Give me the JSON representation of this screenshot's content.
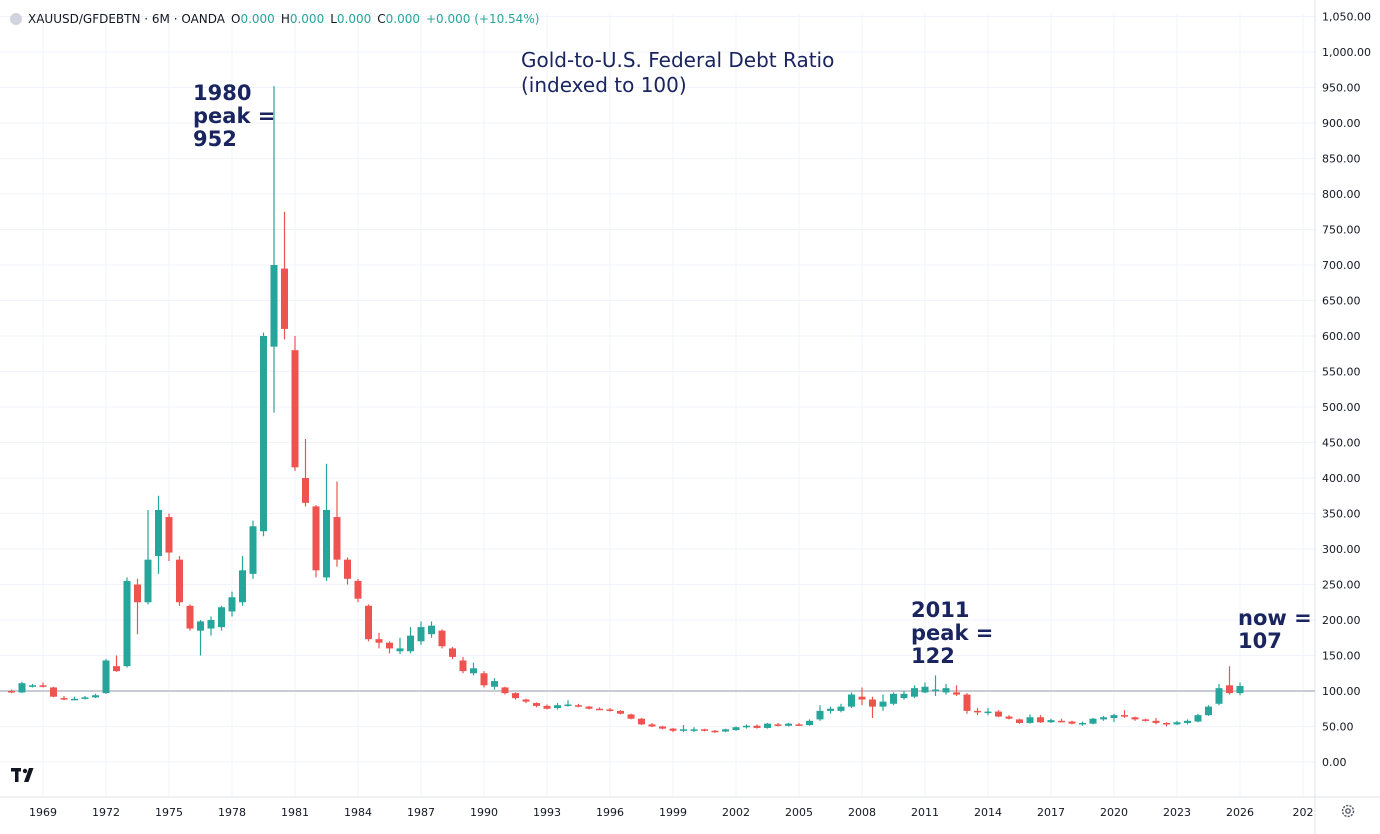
{
  "header": {
    "symbol": "XAUUSD/GFDEBTN · 6M · OANDA",
    "o_label": "O",
    "o_value": "0.000",
    "h_label": "H",
    "h_value": "0.000",
    "l_label": "L",
    "l_value": "0.000",
    "c_label": "C",
    "c_value": "0.000",
    "change": "+0.000 (+10.54%)"
  },
  "chart_data": {
    "type": "candlestick",
    "title": "Gold-to-U.S. Federal Debt Ratio",
    "subtitle": "(indexed to 100)",
    "xlim": [
      1967.4,
      2029.2
    ],
    "ylim": [
      0,
      1050
    ],
    "y_ticks": [
      "0.00",
      "50.00",
      "100.00",
      "150.00",
      "200.00",
      "250.00",
      "300.00",
      "350.00",
      "400.00",
      "450.00",
      "500.00",
      "550.00",
      "600.00",
      "650.00",
      "700.00",
      "750.00",
      "800.00",
      "850.00",
      "900.00",
      "950.00",
      "1,000.00",
      "1,050.00"
    ],
    "x_ticks": [
      "1969",
      "1972",
      "1975",
      "1978",
      "1981",
      "1984",
      "1987",
      "1990",
      "1993",
      "1996",
      "1999",
      "2002",
      "2005",
      "2008",
      "2011",
      "2014",
      "2017",
      "2020",
      "2023",
      "2026",
      "202"
    ],
    "x_tick_positions": [
      1969,
      1972,
      1975,
      1978,
      1981,
      1984,
      1987,
      1990,
      1993,
      1996,
      1999,
      2002,
      2005,
      2008,
      2011,
      2014,
      2017,
      2020,
      2023,
      2026,
      2029
    ],
    "reference_line": 100,
    "candles": [
      {
        "t": 1967.5,
        "o": 100,
        "h": 102,
        "l": 97,
        "c": 98
      },
      {
        "t": 1968.0,
        "o": 98,
        "h": 113,
        "l": 97,
        "c": 111
      },
      {
        "t": 1968.5,
        "o": 108,
        "h": 110,
        "l": 105,
        "c": 108
      },
      {
        "t": 1969.0,
        "o": 108,
        "h": 112,
        "l": 105,
        "c": 107
      },
      {
        "t": 1969.5,
        "o": 105,
        "h": 106,
        "l": 91,
        "c": 92
      },
      {
        "t": 1970.0,
        "o": 90,
        "h": 93,
        "l": 87,
        "c": 89
      },
      {
        "t": 1970.5,
        "o": 89,
        "h": 92,
        "l": 87,
        "c": 89
      },
      {
        "t": 1971.0,
        "o": 89,
        "h": 93,
        "l": 88,
        "c": 91
      },
      {
        "t": 1971.5,
        "o": 91,
        "h": 96,
        "l": 90,
        "c": 94
      },
      {
        "t": 1972.0,
        "o": 97,
        "h": 145,
        "l": 96,
        "c": 143
      },
      {
        "t": 1972.5,
        "o": 135,
        "h": 150,
        "l": 127,
        "c": 128
      },
      {
        "t": 1973.0,
        "o": 135,
        "h": 260,
        "l": 133,
        "c": 255
      },
      {
        "t": 1973.5,
        "o": 250,
        "h": 258,
        "l": 180,
        "c": 225
      },
      {
        "t": 1974.0,
        "o": 225,
        "h": 355,
        "l": 222,
        "c": 285
      },
      {
        "t": 1974.5,
        "o": 290,
        "h": 375,
        "l": 265,
        "c": 355
      },
      {
        "t": 1975.0,
        "o": 345,
        "h": 350,
        "l": 283,
        "c": 295
      },
      {
        "t": 1975.5,
        "o": 285,
        "h": 290,
        "l": 220,
        "c": 225
      },
      {
        "t": 1976.0,
        "o": 220,
        "h": 222,
        "l": 185,
        "c": 188
      },
      {
        "t": 1976.5,
        "o": 185,
        "h": 200,
        "l": 150,
        "c": 198
      },
      {
        "t": 1977.0,
        "o": 188,
        "h": 205,
        "l": 178,
        "c": 200
      },
      {
        "t": 1977.5,
        "o": 190,
        "h": 220,
        "l": 185,
        "c": 218
      },
      {
        "t": 1978.0,
        "o": 212,
        "h": 240,
        "l": 205,
        "c": 232
      },
      {
        "t": 1978.5,
        "o": 225,
        "h": 290,
        "l": 220,
        "c": 270
      },
      {
        "t": 1979.0,
        "o": 265,
        "h": 340,
        "l": 258,
        "c": 332
      },
      {
        "t": 1979.5,
        "o": 325,
        "h": 605,
        "l": 318,
        "c": 600
      },
      {
        "t": 1980.0,
        "o": 585,
        "h": 952,
        "l": 492,
        "c": 700
      },
      {
        "t": 1980.5,
        "o": 695,
        "h": 775,
        "l": 595,
        "c": 610
      },
      {
        "t": 1981.0,
        "o": 580,
        "h": 600,
        "l": 410,
        "c": 415
      },
      {
        "t": 1981.5,
        "o": 400,
        "h": 455,
        "l": 360,
        "c": 365
      },
      {
        "t": 1982.0,
        "o": 360,
        "h": 362,
        "l": 260,
        "c": 270
      },
      {
        "t": 1982.5,
        "o": 260,
        "h": 420,
        "l": 255,
        "c": 355
      },
      {
        "t": 1983.0,
        "o": 345,
        "h": 395,
        "l": 275,
        "c": 285
      },
      {
        "t": 1983.5,
        "o": 285,
        "h": 288,
        "l": 250,
        "c": 258
      },
      {
        "t": 1984.0,
        "o": 255,
        "h": 258,
        "l": 225,
        "c": 230
      },
      {
        "t": 1984.5,
        "o": 220,
        "h": 222,
        "l": 170,
        "c": 173
      },
      {
        "t": 1985.0,
        "o": 173,
        "h": 182,
        "l": 160,
        "c": 168
      },
      {
        "t": 1985.5,
        "o": 168,
        "h": 170,
        "l": 153,
        "c": 160
      },
      {
        "t": 1986.0,
        "o": 156,
        "h": 175,
        "l": 152,
        "c": 160
      },
      {
        "t": 1986.5,
        "o": 156,
        "h": 190,
        "l": 153,
        "c": 178
      },
      {
        "t": 1987.0,
        "o": 170,
        "h": 198,
        "l": 165,
        "c": 190
      },
      {
        "t": 1987.5,
        "o": 180,
        "h": 198,
        "l": 175,
        "c": 192
      },
      {
        "t": 1988.0,
        "o": 185,
        "h": 187,
        "l": 160,
        "c": 163
      },
      {
        "t": 1988.5,
        "o": 160,
        "h": 162,
        "l": 145,
        "c": 148
      },
      {
        "t": 1989.0,
        "o": 143,
        "h": 148,
        "l": 125,
        "c": 128
      },
      {
        "t": 1989.5,
        "o": 125,
        "h": 140,
        "l": 122,
        "c": 132
      },
      {
        "t": 1990.0,
        "o": 125,
        "h": 128,
        "l": 105,
        "c": 108
      },
      {
        "t": 1990.5,
        "o": 106,
        "h": 118,
        "l": 102,
        "c": 114
      },
      {
        "t": 1991.0,
        "o": 105,
        "h": 106,
        "l": 95,
        "c": 97
      },
      {
        "t": 1991.5,
        "o": 97,
        "h": 98,
        "l": 88,
        "c": 90
      },
      {
        "t": 1992.0,
        "o": 88,
        "h": 89,
        "l": 83,
        "c": 85
      },
      {
        "t": 1992.5,
        "o": 83,
        "h": 84,
        "l": 77,
        "c": 79
      },
      {
        "t": 1993.0,
        "o": 79,
        "h": 81,
        "l": 74,
        "c": 75
      },
      {
        "t": 1993.5,
        "o": 76,
        "h": 83,
        "l": 74,
        "c": 80
      },
      {
        "t": 1994.0,
        "o": 80,
        "h": 87,
        "l": 78,
        "c": 81
      },
      {
        "t": 1994.5,
        "o": 80,
        "h": 82,
        "l": 77,
        "c": 78
      },
      {
        "t": 1995.0,
        "o": 78,
        "h": 79,
        "l": 74,
        "c": 75
      },
      {
        "t": 1995.5,
        "o": 75,
        "h": 77,
        "l": 73,
        "c": 74
      },
      {
        "t": 1996.0,
        "o": 74,
        "h": 76,
        "l": 71,
        "c": 72
      },
      {
        "t": 1996.5,
        "o": 72,
        "h": 73,
        "l": 67,
        "c": 68
      },
      {
        "t": 1997.0,
        "o": 67,
        "h": 68,
        "l": 60,
        "c": 61
      },
      {
        "t": 1997.5,
        "o": 61,
        "h": 62,
        "l": 52,
        "c": 53
      },
      {
        "t": 1998.0,
        "o": 53,
        "h": 55,
        "l": 49,
        "c": 50
      },
      {
        "t": 1998.5,
        "o": 50,
        "h": 51,
        "l": 46,
        "c": 47
      },
      {
        "t": 1999.0,
        "o": 47,
        "h": 48,
        "l": 42,
        "c": 44
      },
      {
        "t": 1999.5,
        "o": 44,
        "h": 52,
        "l": 42,
        "c": 46
      },
      {
        "t": 2000.0,
        "o": 45,
        "h": 49,
        "l": 42,
        "c": 46
      },
      {
        "t": 2000.5,
        "o": 46,
        "h": 47,
        "l": 43,
        "c": 44
      },
      {
        "t": 2001.0,
        "o": 44,
        "h": 45,
        "l": 41,
        "c": 43
      },
      {
        "t": 2001.5,
        "o": 43,
        "h": 47,
        "l": 42,
        "c": 46
      },
      {
        "t": 2002.0,
        "o": 45,
        "h": 50,
        "l": 44,
        "c": 49
      },
      {
        "t": 2002.5,
        "o": 49,
        "h": 53,
        "l": 47,
        "c": 51
      },
      {
        "t": 2003.0,
        "o": 51,
        "h": 53,
        "l": 47,
        "c": 48
      },
      {
        "t": 2003.5,
        "o": 48,
        "h": 55,
        "l": 47,
        "c": 54
      },
      {
        "t": 2004.0,
        "o": 53,
        "h": 55,
        "l": 50,
        "c": 52
      },
      {
        "t": 2004.5,
        "o": 51,
        "h": 55,
        "l": 50,
        "c": 54
      },
      {
        "t": 2005.0,
        "o": 53,
        "h": 55,
        "l": 51,
        "c": 52
      },
      {
        "t": 2005.5,
        "o": 52,
        "h": 60,
        "l": 51,
        "c": 58
      },
      {
        "t": 2006.0,
        "o": 60,
        "h": 80,
        "l": 58,
        "c": 72
      },
      {
        "t": 2006.5,
        "o": 72,
        "h": 78,
        "l": 68,
        "c": 75
      },
      {
        "t": 2007.0,
        "o": 72,
        "h": 82,
        "l": 70,
        "c": 78
      },
      {
        "t": 2007.5,
        "o": 78,
        "h": 98,
        "l": 76,
        "c": 95
      },
      {
        "t": 2008.0,
        "o": 92,
        "h": 105,
        "l": 80,
        "c": 88
      },
      {
        "t": 2008.5,
        "o": 88,
        "h": 92,
        "l": 62,
        "c": 78
      },
      {
        "t": 2009.0,
        "o": 78,
        "h": 95,
        "l": 72,
        "c": 85
      },
      {
        "t": 2009.5,
        "o": 82,
        "h": 98,
        "l": 80,
        "c": 96
      },
      {
        "t": 2010.0,
        "o": 90,
        "h": 100,
        "l": 88,
        "c": 96
      },
      {
        "t": 2010.5,
        "o": 92,
        "h": 108,
        "l": 90,
        "c": 104
      },
      {
        "t": 2011.0,
        "o": 98,
        "h": 112,
        "l": 97,
        "c": 106
      },
      {
        "t": 2011.5,
        "o": 100,
        "h": 122,
        "l": 93,
        "c": 102
      },
      {
        "t": 2012.0,
        "o": 98,
        "h": 110,
        "l": 95,
        "c": 104
      },
      {
        "t": 2012.5,
        "o": 98,
        "h": 108,
        "l": 93,
        "c": 95
      },
      {
        "t": 2013.0,
        "o": 95,
        "h": 97,
        "l": 68,
        "c": 72
      },
      {
        "t": 2013.5,
        "o": 72,
        "h": 76,
        "l": 66,
        "c": 70
      },
      {
        "t": 2014.0,
        "o": 70,
        "h": 76,
        "l": 66,
        "c": 71
      },
      {
        "t": 2014.5,
        "o": 71,
        "h": 73,
        "l": 63,
        "c": 64
      },
      {
        "t": 2015.0,
        "o": 64,
        "h": 66,
        "l": 60,
        "c": 61
      },
      {
        "t": 2015.5,
        "o": 60,
        "h": 61,
        "l": 54,
        "c": 55
      },
      {
        "t": 2016.0,
        "o": 55,
        "h": 67,
        "l": 54,
        "c": 63
      },
      {
        "t": 2016.5,
        "o": 63,
        "h": 66,
        "l": 55,
        "c": 56
      },
      {
        "t": 2017.0,
        "o": 56,
        "h": 61,
        "l": 55,
        "c": 59
      },
      {
        "t": 2017.5,
        "o": 58,
        "h": 61,
        "l": 56,
        "c": 57
      },
      {
        "t": 2018.0,
        "o": 57,
        "h": 58,
        "l": 53,
        "c": 54
      },
      {
        "t": 2018.5,
        "o": 54,
        "h": 57,
        "l": 51,
        "c": 55
      },
      {
        "t": 2019.0,
        "o": 54,
        "h": 62,
        "l": 53,
        "c": 61
      },
      {
        "t": 2019.5,
        "o": 60,
        "h": 65,
        "l": 58,
        "c": 63
      },
      {
        "t": 2020.0,
        "o": 62,
        "h": 68,
        "l": 56,
        "c": 66
      },
      {
        "t": 2020.5,
        "o": 66,
        "h": 73,
        "l": 62,
        "c": 64
      },
      {
        "t": 2021.0,
        "o": 63,
        "h": 64,
        "l": 58,
        "c": 60
      },
      {
        "t": 2021.5,
        "o": 60,
        "h": 61,
        "l": 57,
        "c": 58
      },
      {
        "t": 2022.0,
        "o": 58,
        "h": 62,
        "l": 53,
        "c": 55
      },
      {
        "t": 2022.5,
        "o": 55,
        "h": 56,
        "l": 50,
        "c": 53
      },
      {
        "t": 2023.0,
        "o": 53,
        "h": 58,
        "l": 52,
        "c": 56
      },
      {
        "t": 2023.5,
        "o": 55,
        "h": 60,
        "l": 53,
        "c": 58
      },
      {
        "t": 2024.0,
        "o": 57,
        "h": 68,
        "l": 56,
        "c": 66
      },
      {
        "t": 2024.5,
        "o": 66,
        "h": 80,
        "l": 65,
        "c": 78
      },
      {
        "t": 2025.0,
        "o": 82,
        "h": 110,
        "l": 80,
        "c": 104
      },
      {
        "t": 2025.5,
        "o": 108,
        "h": 135,
        "l": 95,
        "c": 97
      },
      {
        "t": 2026.0,
        "o": 97,
        "h": 112,
        "l": 94,
        "c": 107
      }
    ],
    "annotations": [
      {
        "lines": [
          "1980",
          "peak =",
          "952"
        ],
        "x": 1980.0,
        "y": 952
      },
      {
        "lines": [
          "2011",
          "peak =",
          "122"
        ],
        "x": 2011.5,
        "y": 122
      },
      {
        "lines": [
          "now =",
          "107"
        ],
        "x": 2026.0,
        "y": 107
      }
    ],
    "colors": {
      "up": "#26a69a",
      "down": "#ef5350",
      "text": "#1a2560",
      "grid": "#f0f3fa",
      "reference": "#c8cbd1"
    }
  }
}
